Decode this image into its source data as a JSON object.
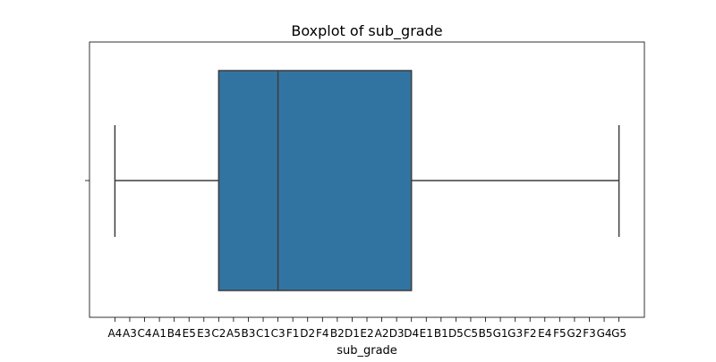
{
  "chart_data": {
    "type": "boxplot",
    "title": "Boxplot of sub_grade",
    "xlabel": "sub_grade",
    "ylabel": "",
    "orientation": "horizontal",
    "categories": [
      "A4",
      "A3",
      "C4",
      "A1",
      "B4",
      "E5",
      "E3",
      "C2",
      "A5",
      "B3",
      "C1",
      "C3",
      "F1",
      "D2",
      "F4",
      "B2",
      "D1",
      "E2",
      "A2",
      "D3",
      "D4",
      "E1",
      "B1",
      "D5",
      "C5",
      "B5",
      "G1",
      "G3",
      "F2",
      "E4",
      "F5",
      "G2",
      "F3",
      "G4",
      "G5"
    ],
    "box": {
      "whisker_low": "A4",
      "q1": "C2",
      "median": "C3",
      "q3": "D4",
      "whisker_high": "G5"
    },
    "colors": {
      "box_fill": "#3274a1",
      "line": "#3d3d3d"
    },
    "grid": false,
    "legend": false
  }
}
